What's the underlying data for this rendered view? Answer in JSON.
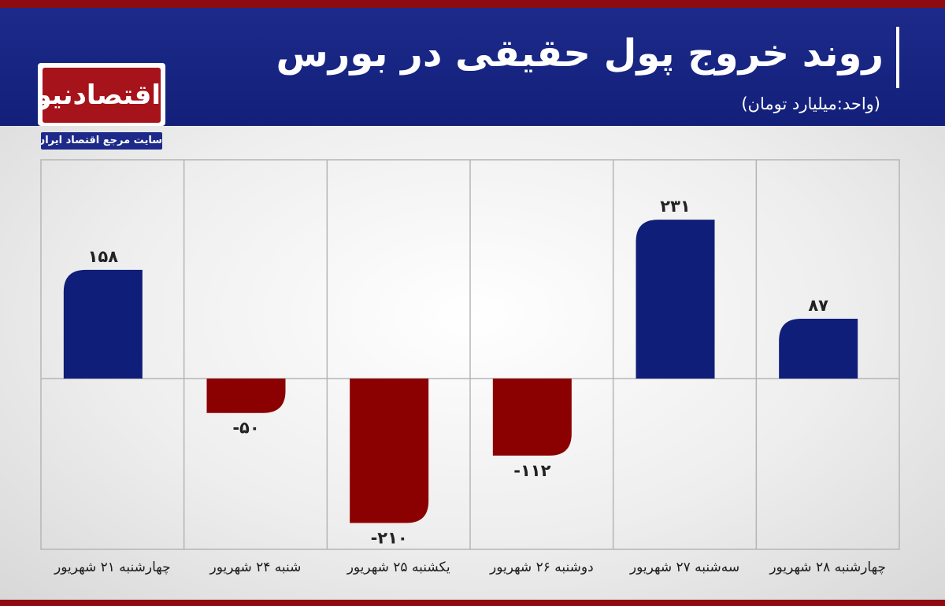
{
  "header": {
    "title": "روند خروج پول حقیقی در بورس",
    "subtitle": "(واحد:میلیارد تومان)"
  },
  "logo": {
    "name": "اقتصادنیوز",
    "tagline": "سایت مرجع اقتصاد ایران"
  },
  "colors": {
    "header_bg": "#1d2a8a",
    "brand_red": "#8e0b12",
    "positive_bar": "#0f1e78",
    "negative_bar": "#8b0000",
    "grid": "#b5b5b5"
  },
  "chart_data": {
    "type": "bar",
    "title": "روند خروج پول حقیقی در بورس",
    "ylabel": "",
    "xlabel": "",
    "ylim": [
      -260,
      320
    ],
    "grid": true,
    "categories": [
      "چهارشنبه ۲۱ شهریور",
      "شنبه ۲۴ شهریور",
      "یکشنبه ۲۵ شهریور",
      "دوشنبه ۲۶ شهریور",
      "سه‌شنبه ۲۷ شهریور",
      "چهارشنبه ۲۸ شهریور"
    ],
    "values": [
      158,
      -50,
      -210,
      -112,
      231,
      87
    ],
    "value_labels": [
      "۱۵۸",
      "-۵۰",
      "-۲۱۰",
      "-۱۱۲",
      "۲۳۱",
      "۸۷"
    ]
  }
}
